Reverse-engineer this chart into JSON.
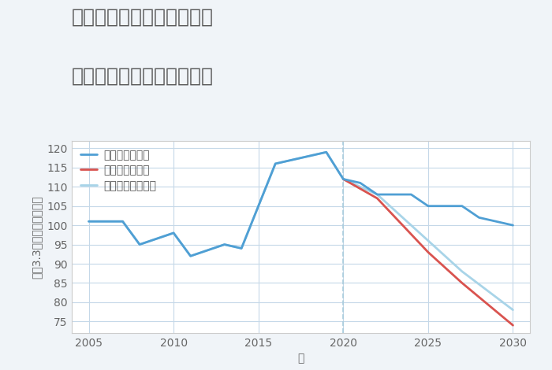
{
  "title_line1": "愛知県稲沢市平和町法立の",
  "title_line2": "中古マンションの価格推移",
  "xlabel": "年",
  "ylabel": "坪（3.3㎡）単価（万円）",
  "background_color": "#f0f4f8",
  "plot_background_color": "#ffffff",
  "grid_color": "#c5d8e8",
  "good_scenario": {
    "label": "グッドシナリオ",
    "color": "#4f9fd4",
    "linewidth": 2.0,
    "x": [
      2005,
      2007,
      2008,
      2010,
      2011,
      2013,
      2014,
      2016,
      2017,
      2019,
      2020,
      2021,
      2022,
      2024,
      2025,
      2027,
      2028,
      2030
    ],
    "y": [
      101,
      101,
      95,
      98,
      92,
      95,
      94,
      116,
      117,
      119,
      112,
      111,
      108,
      108,
      105,
      105,
      102,
      100
    ]
  },
  "bad_scenario": {
    "label": "バッドシナリオ",
    "color": "#d9534f",
    "linewidth": 2.0,
    "x": [
      2020,
      2022,
      2025,
      2027,
      2030
    ],
    "y": [
      112,
      107,
      93,
      85,
      74
    ]
  },
  "normal_scenario": {
    "label": "ノーマルシナリオ",
    "color": "#a8d4e8",
    "linewidth": 2.0,
    "x": [
      2005,
      2007,
      2008,
      2010,
      2011,
      2013,
      2014,
      2016,
      2017,
      2019,
      2020,
      2022,
      2025,
      2027,
      2030
    ],
    "y": [
      101,
      101,
      95,
      98,
      92,
      95,
      94,
      116,
      117,
      119,
      112,
      108,
      96,
      88,
      78
    ]
  },
  "xlim": [
    2004,
    2031
  ],
  "ylim": [
    72,
    122
  ],
  "xticks": [
    2005,
    2010,
    2015,
    2020,
    2025,
    2030
  ],
  "yticks": [
    75,
    80,
    85,
    90,
    95,
    100,
    105,
    110,
    115,
    120
  ],
  "title_color": "#555555",
  "title_fontsize": 18,
  "legend_fontsize": 10,
  "tick_fontsize": 10,
  "label_fontsize": 10,
  "vline_x": 2020,
  "vline_color": "#aaccdd",
  "vline_style": "--"
}
